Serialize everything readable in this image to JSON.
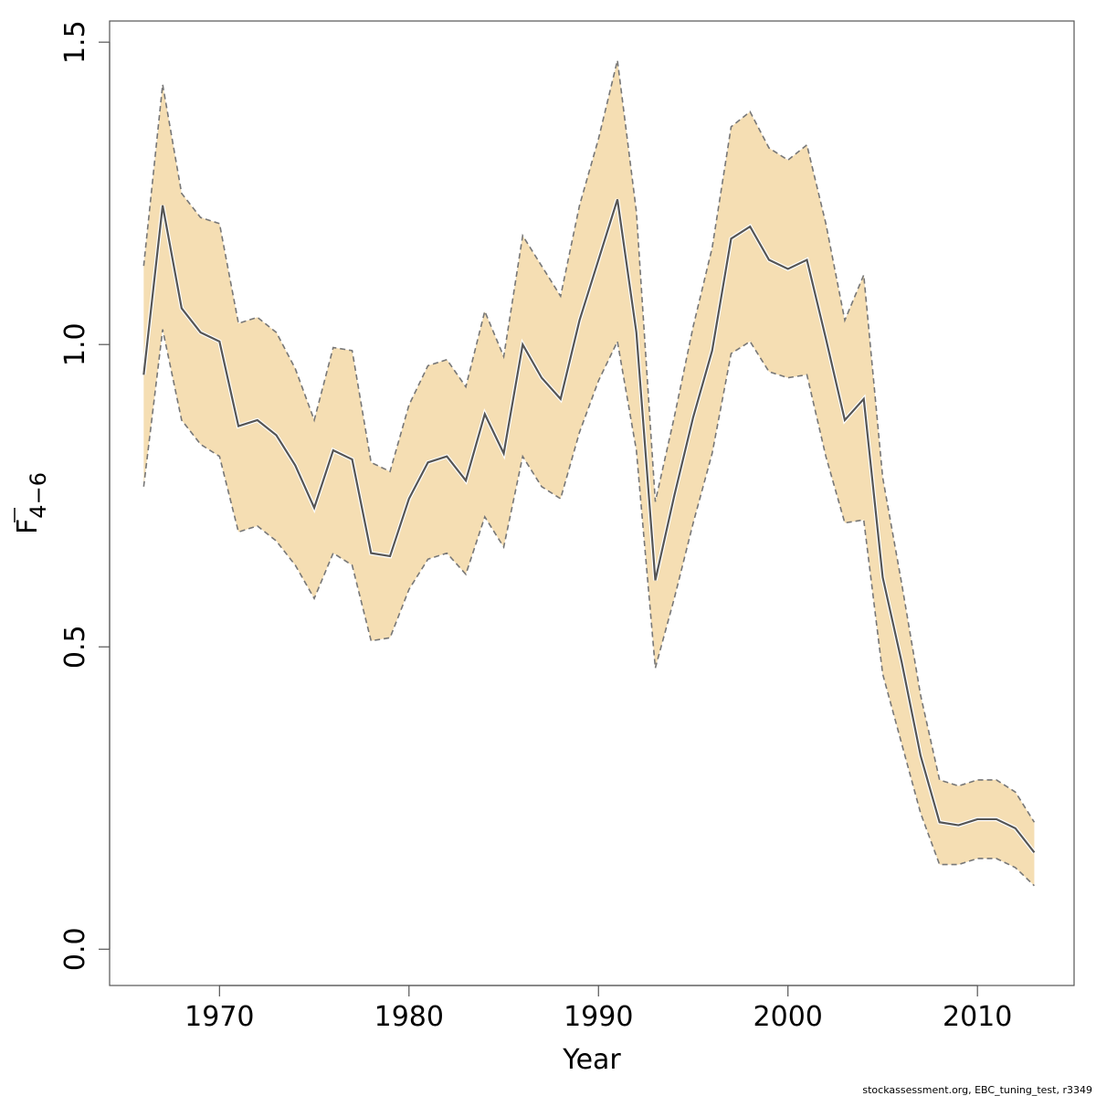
{
  "chart_data": {
    "type": "line",
    "title": "",
    "xlabel": "Year",
    "ylabel": {
      "main": "F",
      "subscript": "4−6"
    },
    "xlim": [
      1964.2,
      2015.1
    ],
    "ylim": [
      -0.06,
      1.535
    ],
    "x_ticks": [
      1970,
      1980,
      1990,
      2000,
      2010
    ],
    "x_tick_labels": [
      "1970",
      "1980",
      "1990",
      "2000",
      "2010"
    ],
    "y_ticks": [
      0.0,
      0.5,
      1.0,
      1.5
    ],
    "y_tick_labels": [
      "0.0",
      "0.5",
      "1.0",
      "1.5"
    ],
    "grid": false,
    "legend": "none",
    "x": [
      1966,
      1967,
      1968,
      1969,
      1970,
      1971,
      1972,
      1973,
      1974,
      1975,
      1976,
      1977,
      1978,
      1979,
      1980,
      1981,
      1982,
      1983,
      1984,
      1985,
      1986,
      1987,
      1988,
      1989,
      1990,
      1991,
      1992,
      1993,
      1994,
      1995,
      1996,
      1997,
      1998,
      1999,
      2000,
      2001,
      2002,
      2003,
      2004,
      2005,
      2006,
      2007,
      2008,
      2009,
      2010,
      2011,
      2012,
      2013
    ],
    "series": [
      {
        "role": "estimate",
        "style": "solid",
        "color": "#555555",
        "values": [
          0.95,
          1.23,
          1.06,
          1.02,
          1.005,
          0.865,
          0.875,
          0.85,
          0.8,
          0.73,
          0.825,
          0.81,
          0.655,
          0.65,
          0.745,
          0.805,
          0.815,
          0.775,
          0.885,
          0.82,
          1.0,
          0.945,
          0.91,
          1.04,
          1.14,
          1.24,
          1.02,
          0.61,
          0.75,
          0.88,
          0.99,
          1.175,
          1.195,
          1.14,
          1.125,
          1.14,
          1.01,
          0.875,
          0.91,
          0.615,
          0.475,
          0.32,
          0.21,
          0.205,
          0.215,
          0.215,
          0.2,
          0.16
        ]
      },
      {
        "role": "upper",
        "style": "dashed",
        "color": "#777777",
        "values": [
          1.13,
          1.43,
          1.25,
          1.21,
          1.2,
          1.035,
          1.045,
          1.02,
          0.96,
          0.875,
          0.995,
          0.99,
          0.805,
          0.79,
          0.9,
          0.965,
          0.975,
          0.93,
          1.055,
          0.98,
          1.18,
          1.13,
          1.08,
          1.23,
          1.34,
          1.47,
          1.22,
          0.74,
          0.88,
          1.03,
          1.16,
          1.36,
          1.385,
          1.325,
          1.305,
          1.33,
          1.2,
          1.04,
          1.115,
          0.78,
          0.605,
          0.42,
          0.28,
          0.27,
          0.28,
          0.28,
          0.26,
          0.21
        ]
      },
      {
        "role": "lower",
        "style": "dashed",
        "color": "#777777",
        "values": [
          0.765,
          1.025,
          0.875,
          0.835,
          0.815,
          0.69,
          0.7,
          0.675,
          0.635,
          0.58,
          0.655,
          0.635,
          0.51,
          0.515,
          0.595,
          0.645,
          0.655,
          0.62,
          0.715,
          0.665,
          0.815,
          0.765,
          0.745,
          0.855,
          0.94,
          1.005,
          0.825,
          0.465,
          0.58,
          0.705,
          0.82,
          0.985,
          1.005,
          0.955,
          0.945,
          0.95,
          0.815,
          0.705,
          0.71,
          0.455,
          0.34,
          0.225,
          0.14,
          0.14,
          0.15,
          0.15,
          0.135,
          0.105
        ]
      }
    ],
    "band_color": "#f5deb3"
  },
  "footer": {
    "credit": "stockassessment.org, EBC_tuning_test, r3349"
  }
}
